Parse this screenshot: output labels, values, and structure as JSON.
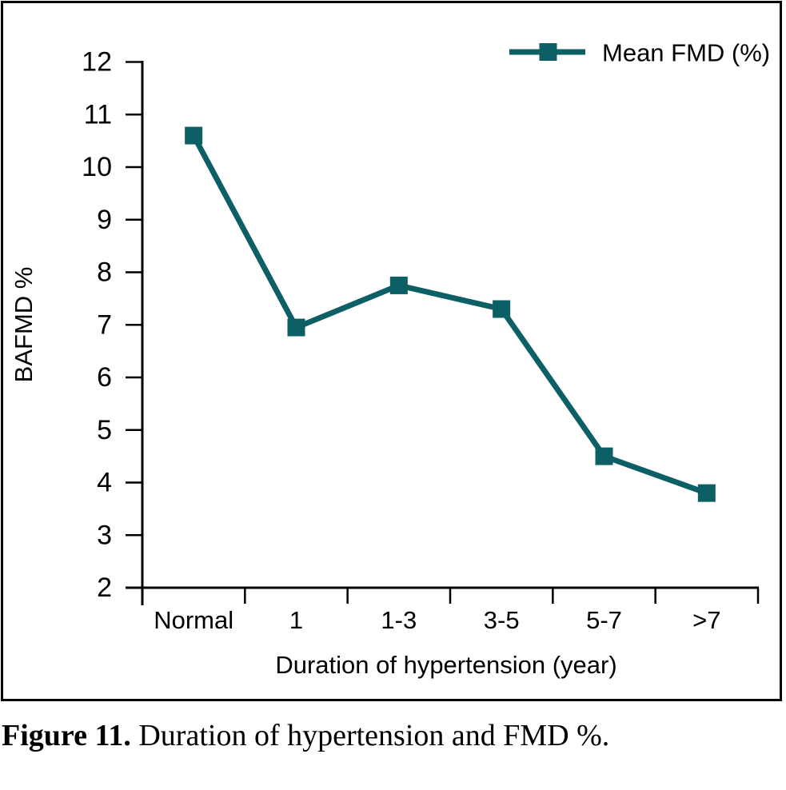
{
  "figure": {
    "caption_label": "Figure 11.",
    "caption_text": " Duration of hypertension and FMD %."
  },
  "chart_data": {
    "type": "line",
    "categories": [
      "Normal",
      "1",
      "1-3",
      "3-5",
      "5-7",
      ">7"
    ],
    "series": [
      {
        "name": "Mean FMD (%)",
        "values": [
          10.6,
          6.95,
          7.75,
          7.3,
          4.5,
          3.8
        ]
      }
    ],
    "title": "",
    "xlabel": "Duration of hypertension (year)",
    "ylabel": "BAFMD %",
    "ylim": [
      2,
      12
    ],
    "yticks": [
      2,
      3,
      4,
      5,
      6,
      7,
      8,
      9,
      10,
      11,
      12
    ],
    "grid": false,
    "legend": {
      "label": "Mean FMD (%)",
      "position": "top-right",
      "marker": "square"
    },
    "colors": {
      "line": "#0d5f66",
      "marker": "#0d5f66",
      "axis": "#000000",
      "text": "#000000",
      "border": "#000000",
      "background": "#ffffff"
    }
  }
}
